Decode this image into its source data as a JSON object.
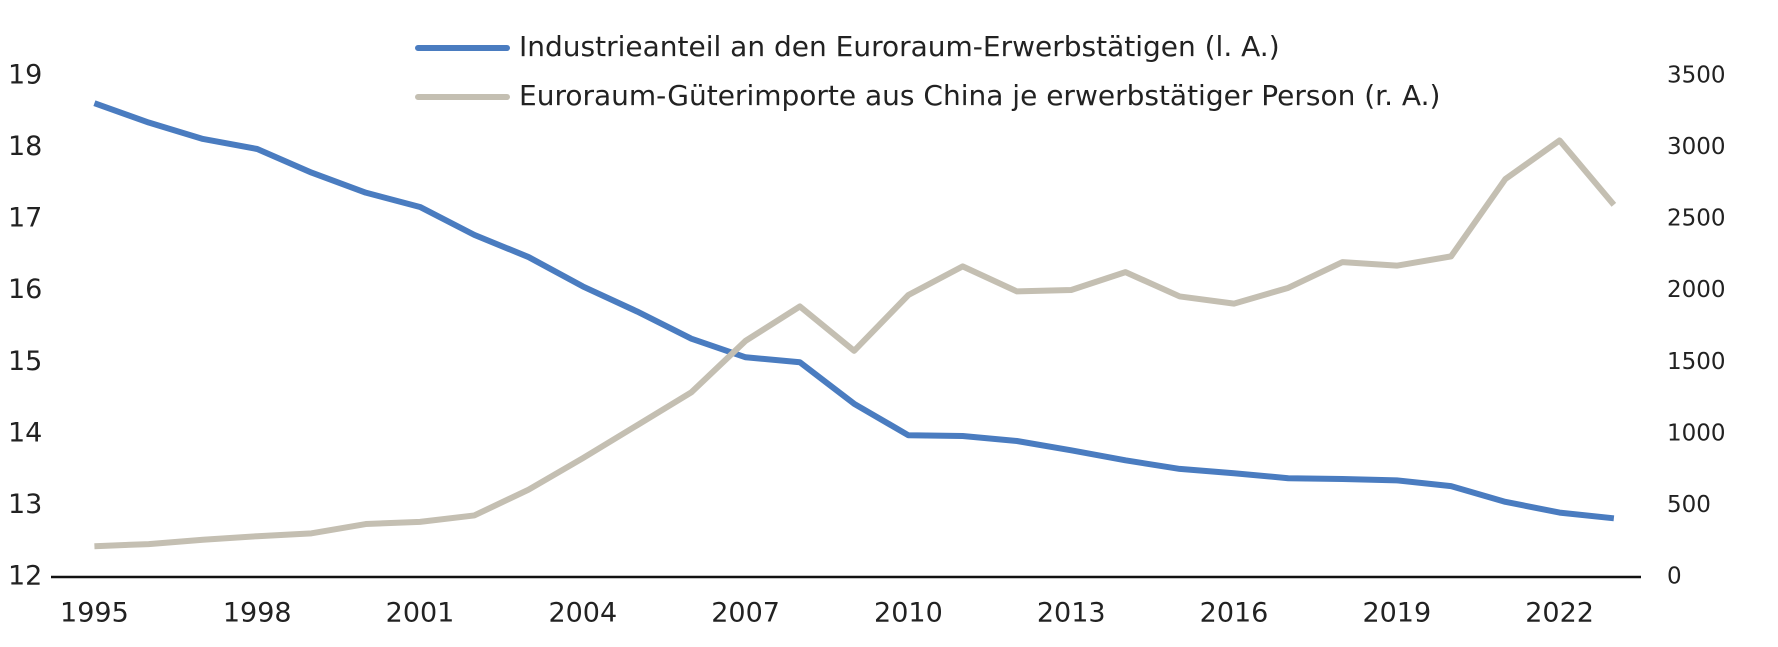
{
  "chart_data": {
    "type": "line",
    "x": [
      1995,
      1996,
      1997,
      1998,
      1999,
      2000,
      2001,
      2002,
      2003,
      2004,
      2005,
      2006,
      2007,
      2008,
      2009,
      2010,
      2011,
      2012,
      2013,
      2014,
      2015,
      2016,
      2017,
      2018,
      2019,
      2020,
      2021,
      2022,
      2023
    ],
    "series": [
      {
        "name": "Industrieanteil an den Euroraum-Erwerbstätigen (l. A.)",
        "color": "#4a7cc0",
        "axis": "y",
        "values": [
          18.62,
          18.35,
          18.12,
          17.98,
          17.65,
          17.37,
          17.17,
          16.78,
          16.47,
          16.06,
          15.71,
          15.33,
          15.07,
          15.0,
          14.42,
          13.98,
          13.97,
          13.9,
          13.77,
          13.63,
          13.51,
          13.45,
          13.38,
          13.37,
          13.35,
          13.27,
          13.05,
          12.9,
          12.82
        ]
      },
      {
        "name": "Euroraum-Güterimporte aus China je erwerbstätiger Person (r. A.)",
        "color": "#c4bfb2",
        "axis": "y2",
        "values": [
          215,
          230,
          260,
          285,
          305,
          370,
          385,
          430,
          610,
          830,
          1060,
          1290,
          1650,
          1890,
          1580,
          1970,
          2170,
          1995,
          2005,
          2130,
          1960,
          1910,
          2020,
          2200,
          2175,
          2240,
          2780,
          3050,
          2600
        ]
      }
    ],
    "xlim": [
      1994.2,
      2023.5
    ],
    "xticks": [
      1995,
      1998,
      2001,
      2004,
      2007,
      2010,
      2013,
      2016,
      2019,
      2022
    ],
    "ylim": [
      12,
      19
    ],
    "yticks": [
      12,
      13,
      14,
      15,
      16,
      17,
      18,
      19
    ],
    "y2lim": [
      0,
      3500
    ],
    "y2ticks": [
      0,
      500,
      1000,
      1500,
      2000,
      2500,
      3000,
      3500
    ]
  }
}
